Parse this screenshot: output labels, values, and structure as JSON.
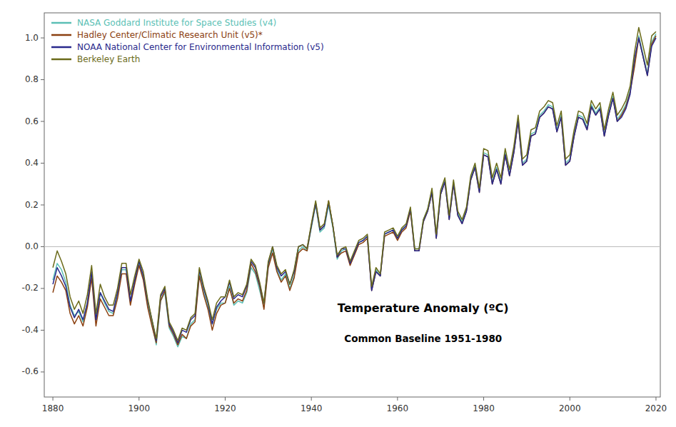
{
  "chart_data": {
    "type": "line",
    "legend": "upper left",
    "grid": false,
    "annotations": [
      "Temperature Anomaly (ºC)",
      "Common Baseline 1951-1980"
    ],
    "xlim": [
      1878,
      2021
    ],
    "ylim": [
      -0.72,
      1.12
    ],
    "xticks": [
      1880,
      1900,
      1920,
      1940,
      1960,
      1980,
      2000,
      2020
    ],
    "yticks": [
      -0.6,
      -0.4,
      -0.2,
      {
        "value": 0.0,
        "label": "0.0"
      },
      0.2,
      0.4,
      0.6,
      0.8,
      {
        "value": 1.0,
        "label": "1.0"
      }
    ],
    "x": [
      1880,
      1881,
      1882,
      1883,
      1884,
      1885,
      1886,
      1887,
      1888,
      1889,
      1890,
      1891,
      1892,
      1893,
      1894,
      1895,
      1896,
      1897,
      1898,
      1899,
      1900,
      1901,
      1902,
      1903,
      1904,
      1905,
      1906,
      1907,
      1908,
      1909,
      1910,
      1911,
      1912,
      1913,
      1914,
      1915,
      1916,
      1917,
      1918,
      1919,
      1920,
      1921,
      1922,
      1923,
      1924,
      1925,
      1926,
      1927,
      1928,
      1929,
      1930,
      1931,
      1932,
      1933,
      1934,
      1935,
      1936,
      1937,
      1938,
      1939,
      1940,
      1941,
      1942,
      1943,
      1944,
      1945,
      1946,
      1947,
      1948,
      1949,
      1950,
      1951,
      1952,
      1953,
      1954,
      1955,
      1956,
      1957,
      1958,
      1959,
      1960,
      1961,
      1962,
      1963,
      1964,
      1965,
      1966,
      1967,
      1968,
      1969,
      1970,
      1971,
      1972,
      1973,
      1974,
      1975,
      1976,
      1977,
      1978,
      1979,
      1980,
      1981,
      1982,
      1983,
      1984,
      1985,
      1986,
      1987,
      1988,
      1989,
      1990,
      1991,
      1992,
      1993,
      1994,
      1995,
      1996,
      1997,
      1998,
      1999,
      2000,
      2001,
      2002,
      2003,
      2004,
      2005,
      2006,
      2007,
      2008,
      2009,
      2010,
      2011,
      2012,
      2013,
      2014,
      2015,
      2016,
      2017,
      2018,
      2019,
      2020
    ],
    "series": [
      {
        "name": "NASA Goddard Institute for Space Studies (v4)",
        "color": "#5bbfb5",
        "values": [
          -0.16,
          -0.08,
          -0.11,
          -0.17,
          -0.28,
          -0.33,
          -0.31,
          -0.36,
          -0.27,
          -0.13,
          -0.35,
          -0.22,
          -0.27,
          -0.31,
          -0.32,
          -0.23,
          -0.11,
          -0.11,
          -0.27,
          -0.17,
          -0.08,
          -0.15,
          -0.28,
          -0.37,
          -0.47,
          -0.26,
          -0.22,
          -0.39,
          -0.43,
          -0.48,
          -0.43,
          -0.44,
          -0.37,
          -0.35,
          -0.13,
          -0.22,
          -0.29,
          -0.37,
          -0.3,
          -0.27,
          -0.27,
          -0.19,
          -0.28,
          -0.26,
          -0.27,
          -0.22,
          -0.1,
          -0.13,
          -0.21,
          -0.29,
          -0.09,
          -0.01,
          -0.11,
          -0.16,
          -0.13,
          -0.2,
          -0.14,
          -0.02,
          -0.0,
          -0.02,
          0.09,
          0.2,
          0.07,
          0.09,
          0.2,
          0.09,
          -0.06,
          -0.02,
          -0.01,
          -0.08,
          -0.03,
          0.02,
          0.03,
          0.05,
          -0.2,
          -0.11,
          -0.14,
          0.06,
          0.07,
          0.08,
          0.04,
          0.08,
          0.1,
          0.18,
          -0.01,
          -0.01,
          0.13,
          0.18,
          0.27,
          0.05,
          0.26,
          0.32,
          0.14,
          0.31,
          0.16,
          0.12,
          0.18,
          0.33,
          0.39,
          0.27,
          0.45,
          0.44,
          0.31,
          0.38,
          0.31,
          0.45,
          0.35,
          0.46,
          0.61,
          0.4,
          0.42,
          0.54,
          0.55,
          0.63,
          0.65,
          0.68,
          0.67,
          0.56,
          0.63,
          0.4,
          0.42,
          0.54,
          0.63,
          0.62,
          0.57,
          0.68,
          0.64,
          0.67,
          0.54,
          0.64,
          0.72,
          0.61,
          0.64,
          0.68,
          0.75,
          0.87,
          1.01,
          0.92,
          0.83,
          0.98,
          1.02
        ]
      },
      {
        "name": "Hadley Center/Climatic Research Unit (v5)*",
        "color": "#8B4010",
        "values": [
          -0.22,
          -0.14,
          -0.17,
          -0.21,
          -0.32,
          -0.37,
          -0.33,
          -0.38,
          -0.29,
          -0.15,
          -0.38,
          -0.25,
          -0.29,
          -0.33,
          -0.33,
          -0.25,
          -0.13,
          -0.13,
          -0.28,
          -0.18,
          -0.09,
          -0.16,
          -0.29,
          -0.38,
          -0.46,
          -0.26,
          -0.21,
          -0.38,
          -0.42,
          -0.47,
          -0.42,
          -0.44,
          -0.38,
          -0.36,
          -0.14,
          -0.23,
          -0.3,
          -0.4,
          -0.32,
          -0.28,
          -0.27,
          -0.2,
          -0.27,
          -0.25,
          -0.26,
          -0.21,
          -0.08,
          -0.12,
          -0.19,
          -0.3,
          -0.1,
          -0.03,
          -0.12,
          -0.17,
          -0.14,
          -0.21,
          -0.15,
          -0.03,
          -0.01,
          -0.02,
          0.1,
          0.21,
          0.08,
          0.1,
          0.22,
          0.1,
          -0.05,
          -0.03,
          -0.02,
          -0.09,
          -0.04,
          0.01,
          0.02,
          0.04,
          -0.21,
          -0.12,
          -0.14,
          0.05,
          0.06,
          0.07,
          0.03,
          0.07,
          0.09,
          0.17,
          -0.02,
          -0.02,
          0.12,
          0.17,
          0.26,
          0.04,
          0.25,
          0.31,
          0.13,
          0.3,
          0.15,
          0.11,
          0.17,
          0.32,
          0.38,
          0.26,
          0.44,
          0.43,
          0.3,
          0.37,
          0.3,
          0.44,
          0.34,
          0.45,
          0.6,
          0.39,
          0.41,
          0.53,
          0.54,
          0.62,
          0.64,
          0.67,
          0.66,
          0.55,
          0.62,
          0.39,
          0.41,
          0.53,
          0.62,
          0.61,
          0.56,
          0.67,
          0.63,
          0.66,
          0.53,
          0.63,
          0.71,
          0.6,
          0.63,
          0.67,
          0.74,
          0.86,
          1.0,
          0.91,
          0.82,
          0.97,
          1.01
        ]
      },
      {
        "name": "NOAA National Center for Environmental Information (v5)",
        "color": "#29298C",
        "values": [
          -0.18,
          -0.1,
          -0.14,
          -0.19,
          -0.29,
          -0.34,
          -0.3,
          -0.35,
          -0.27,
          -0.12,
          -0.35,
          -0.22,
          -0.26,
          -0.3,
          -0.31,
          -0.22,
          -0.1,
          -0.1,
          -0.26,
          -0.16,
          -0.07,
          -0.14,
          -0.26,
          -0.35,
          -0.45,
          -0.24,
          -0.2,
          -0.37,
          -0.41,
          -0.46,
          -0.4,
          -0.41,
          -0.35,
          -0.33,
          -0.11,
          -0.2,
          -0.27,
          -0.37,
          -0.29,
          -0.26,
          -0.24,
          -0.17,
          -0.25,
          -0.23,
          -0.24,
          -0.19,
          -0.07,
          -0.1,
          -0.18,
          -0.27,
          -0.08,
          -0.0,
          -0.1,
          -0.14,
          -0.12,
          -0.18,
          -0.12,
          -0.0,
          0.01,
          -0.01,
          0.1,
          0.21,
          0.08,
          0.1,
          0.21,
          0.1,
          -0.05,
          -0.01,
          -0.01,
          -0.08,
          -0.03,
          0.02,
          0.03,
          0.05,
          -0.21,
          -0.12,
          -0.14,
          0.06,
          0.07,
          0.08,
          0.04,
          0.08,
          0.1,
          0.18,
          -0.02,
          -0.02,
          0.12,
          0.17,
          0.26,
          0.04,
          0.25,
          0.31,
          0.13,
          0.3,
          0.15,
          0.11,
          0.17,
          0.32,
          0.38,
          0.26,
          0.44,
          0.43,
          0.3,
          0.37,
          0.3,
          0.44,
          0.34,
          0.45,
          0.6,
          0.39,
          0.41,
          0.53,
          0.54,
          0.62,
          0.64,
          0.67,
          0.66,
          0.55,
          0.62,
          0.39,
          0.41,
          0.53,
          0.62,
          0.61,
          0.56,
          0.67,
          0.63,
          0.66,
          0.53,
          0.63,
          0.71,
          0.6,
          0.62,
          0.66,
          0.73,
          0.9,
          1.0,
          0.91,
          0.82,
          0.96,
          1.0
        ]
      },
      {
        "name": "Berkeley Earth",
        "color": "#6B6B1A",
        "values": [
          -0.1,
          -0.02,
          -0.07,
          -0.13,
          -0.24,
          -0.3,
          -0.26,
          -0.32,
          -0.23,
          -0.09,
          -0.32,
          -0.18,
          -0.24,
          -0.28,
          -0.28,
          -0.2,
          -0.08,
          -0.08,
          -0.23,
          -0.14,
          -0.06,
          -0.12,
          -0.25,
          -0.35,
          -0.44,
          -0.23,
          -0.19,
          -0.36,
          -0.4,
          -0.45,
          -0.39,
          -0.4,
          -0.34,
          -0.32,
          -0.1,
          -0.19,
          -0.26,
          -0.35,
          -0.27,
          -0.24,
          -0.24,
          -0.16,
          -0.24,
          -0.22,
          -0.23,
          -0.18,
          -0.06,
          -0.09,
          -0.17,
          -0.27,
          -0.07,
          0.0,
          -0.09,
          -0.13,
          -0.11,
          -0.18,
          -0.11,
          -0.0,
          0.01,
          -0.01,
          0.11,
          0.22,
          0.09,
          0.11,
          0.22,
          0.1,
          -0.04,
          -0.01,
          -0.0,
          -0.07,
          -0.02,
          0.03,
          0.04,
          0.06,
          -0.19,
          -0.1,
          -0.13,
          0.07,
          0.08,
          0.09,
          0.05,
          0.09,
          0.11,
          0.19,
          -0.01,
          -0.01,
          0.13,
          0.18,
          0.28,
          0.06,
          0.27,
          0.33,
          0.15,
          0.32,
          0.17,
          0.13,
          0.19,
          0.34,
          0.4,
          0.28,
          0.47,
          0.46,
          0.33,
          0.4,
          0.33,
          0.47,
          0.37,
          0.48,
          0.63,
          0.42,
          0.44,
          0.56,
          0.57,
          0.65,
          0.67,
          0.7,
          0.69,
          0.58,
          0.65,
          0.42,
          0.44,
          0.56,
          0.65,
          0.64,
          0.59,
          0.7,
          0.66,
          0.69,
          0.56,
          0.66,
          0.74,
          0.63,
          0.66,
          0.7,
          0.77,
          0.93,
          1.05,
          0.96,
          0.87,
          1.01,
          1.03
        ]
      }
    ]
  }
}
